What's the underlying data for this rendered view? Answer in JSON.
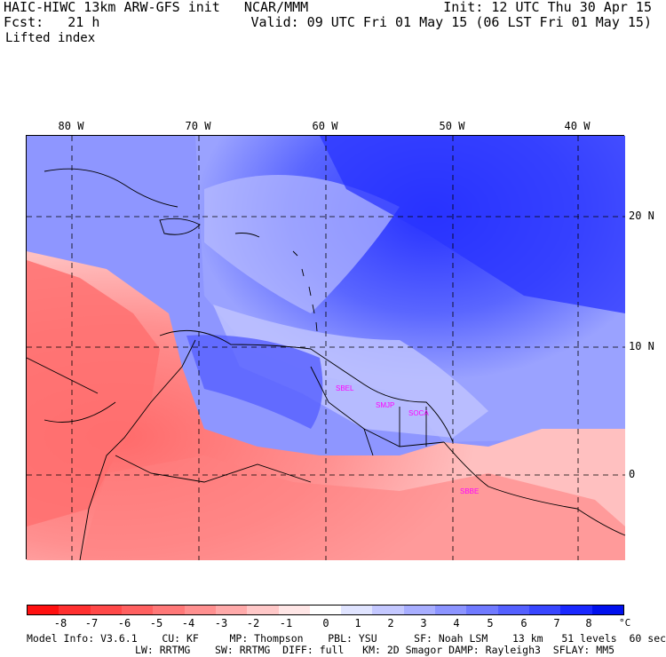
{
  "header": {
    "line1_left": "HAIC-HIWC 13km ARW-GFS init   NCAR/MMM",
    "line2_left": "Fcst:   21 h",
    "field_name": "Lifted index",
    "init": "Init: 12 UTC Thu 30 Apr 15",
    "valid": "Valid: 09 UTC Fri 01 May 15 (06 LST Fri 01 May 15)"
  },
  "map": {
    "longitude_labels": [
      "80 W",
      "70 W",
      "60 W",
      "50 W",
      "40 W"
    ],
    "latitude_labels": [
      "20 N",
      "10 N",
      "0"
    ],
    "station_labels": [
      "SBEL",
      "SMJP",
      "SOCA",
      "SBBE"
    ],
    "colors": {
      "station_label": "#ff00ff",
      "strong_stable": "#1a1aff",
      "unstable": "#ff6060"
    }
  },
  "colorbar": {
    "tick_labels": [
      "-8",
      "-7",
      "-6",
      "-5",
      "-4",
      "-3",
      "-2",
      "-1",
      "0",
      "1",
      "2",
      "3",
      "4",
      "5",
      "6",
      "7",
      "8"
    ],
    "unit": "°C",
    "colors": [
      "#ff1010",
      "#ff3030",
      "#ff4848",
      "#ff6060",
      "#ff7878",
      "#ff9090",
      "#ffaaaa",
      "#ffc8c8",
      "#ffe6e6",
      "#ffffff",
      "#e0e4ff",
      "#c4c8ff",
      "#a8aeff",
      "#8c94ff",
      "#707aff",
      "#5460ff",
      "#3846ff",
      "#1a28ff",
      "#0010ee"
    ]
  },
  "model_info": {
    "line1": "Model Info: V3.6.1    CU: KF     MP: Thompson    PBL: YSU      SF: Noah LSM    13 km   51 levels  60 sec",
    "line2": "LW: RRTMG    SW: RRTMG  DIFF: full   KM: 2D Smagor DAMP: Rayleigh3  SFLAY: MM5"
  }
}
